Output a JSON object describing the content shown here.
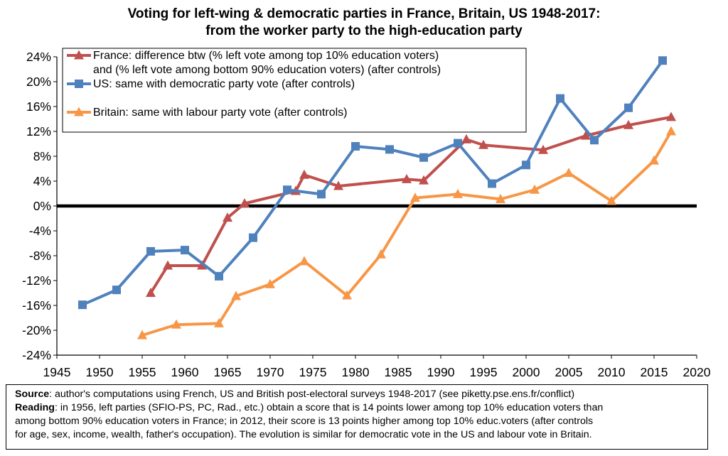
{
  "chart_data": {
    "type": "line",
    "title": [
      "Voting for left-wing & democratic parties in France, Britain, US 1948-2017:",
      "from the worker party to the high-education party"
    ],
    "xlabel": "",
    "ylabel": "",
    "xlim": [
      1945,
      2020
    ],
    "ylim": [
      -24,
      24
    ],
    "x_ticks": [
      1945,
      1950,
      1955,
      1960,
      1965,
      1970,
      1975,
      1980,
      1985,
      1990,
      1995,
      2000,
      2005,
      2010,
      2015,
      2020
    ],
    "y_ticks": [
      24,
      20,
      16,
      12,
      8,
      4,
      0,
      -4,
      -8,
      -12,
      -16,
      -20,
      -24
    ],
    "y_tick_labels": [
      "24%",
      "20%",
      "16%",
      "12%",
      "8%",
      "4%",
      "0%",
      "-4%",
      "-8%",
      "-12%",
      "-16%",
      "-20%",
      "-24%"
    ],
    "grid": false,
    "zero_line": true,
    "legend_position": "top-left",
    "series": [
      {
        "name": "France: difference btw (% left vote among top 10% education voters) and (% left vote among bottom 90% education voters) (after controls)",
        "legend_lines": [
          "France: difference btw (% left vote among top 10% education voters)",
          "and (% left vote among bottom 90% education voters) (after controls)"
        ],
        "color": "#c0504d",
        "marker": "triangle",
        "x": [
          1956,
          1958,
          1962,
          1965,
          1967,
          1973,
          1974,
          1978,
          1986,
          1988,
          1993,
          1995,
          2002,
          2007,
          2012,
          2017
        ],
        "y": [
          -14,
          -9.6,
          -9.6,
          -1.9,
          0.4,
          2.4,
          5.0,
          3.2,
          4.3,
          4.1,
          10.7,
          9.8,
          9.0,
          11.3,
          13.0,
          14.3
        ]
      },
      {
        "name": "US: same with democratic party vote (after controls)",
        "legend_lines": [
          "US: same with democratic party vote (after controls)"
        ],
        "color": "#4f81bd",
        "marker": "square",
        "x": [
          1948,
          1952,
          1956,
          1960,
          1964,
          1968,
          1972,
          1976,
          1980,
          1984,
          1988,
          1992,
          1996,
          2000,
          2004,
          2008,
          2012,
          2016
        ],
        "y": [
          -15.9,
          -13.5,
          -7.3,
          -7.1,
          -11.3,
          -5.1,
          2.6,
          1.9,
          9.6,
          9.1,
          7.8,
          10.1,
          3.6,
          6.6,
          17.3,
          10.6,
          15.8,
          23.4
        ]
      },
      {
        "name": "Britain: same with labour party vote (after controls)",
        "legend_lines": [
          "Britain: same with labour party vote (after controls)"
        ],
        "color": "#f79646",
        "marker": "triangle",
        "x": [
          1955,
          1959,
          1964,
          1966,
          1970,
          1974,
          1979,
          1983,
          1987,
          1992,
          1997,
          2001,
          2005,
          2010,
          2015,
          2017
        ],
        "y": [
          -20.8,
          -19.1,
          -18.9,
          -14.5,
          -12.6,
          -8.9,
          -14.4,
          -7.8,
          1.3,
          1.9,
          1.1,
          2.6,
          5.3,
          0.8,
          7.3,
          12.0
        ]
      }
    ]
  },
  "note": {
    "source_label": "Source",
    "source_text": ": author's computations using French, US and British post-electoral surveys 1948-2017 (see piketty.pse.ens.fr/conflict)",
    "reading_label": "Reading",
    "reading_line1": ": in 1956, left parties (SFIO-PS, PC, Rad., etc.) obtain a score that is 14 points lower among top 10% education voters than",
    "reading_line2": "among bottom 90% education voters in France; in 2012, their score is 13 points higher among top 10% educ.voters (after controls",
    "reading_line3": "for age, sex, income, wealth, father's occupation). The evolution is similar for democratic vote in the US and labour vote in Britain."
  }
}
